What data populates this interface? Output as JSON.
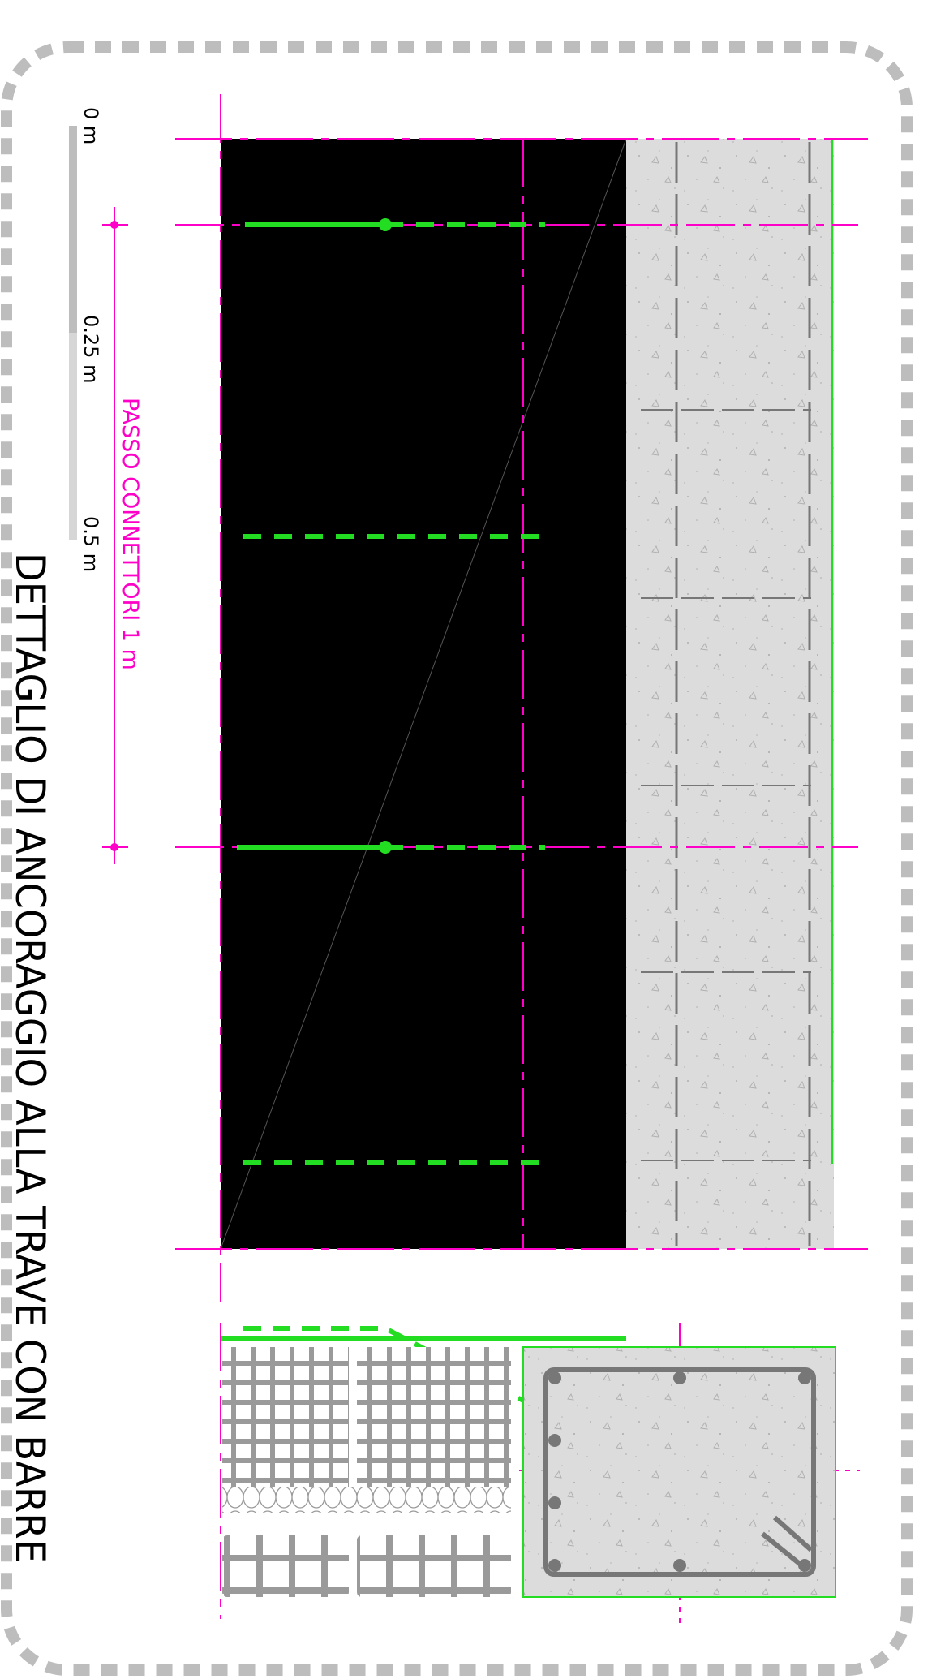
{
  "title": "DETTAGLIO DI ANCORAGGIO ALLA TRAVE CON BARRE",
  "pitch_label": "PASSO CONNETTORI 1 m",
  "scale_bar": {
    "labels": [
      "0 m",
      "0.25 m",
      "0.5 m"
    ]
  },
  "colors": {
    "frame": "#bdbdbd",
    "axis": "#ff00c8",
    "connector": "#22dd22",
    "slab": "#000000",
    "concrete": "#dcdcdc",
    "rebar": "#777777",
    "brick": "#9a9a9a"
  }
}
